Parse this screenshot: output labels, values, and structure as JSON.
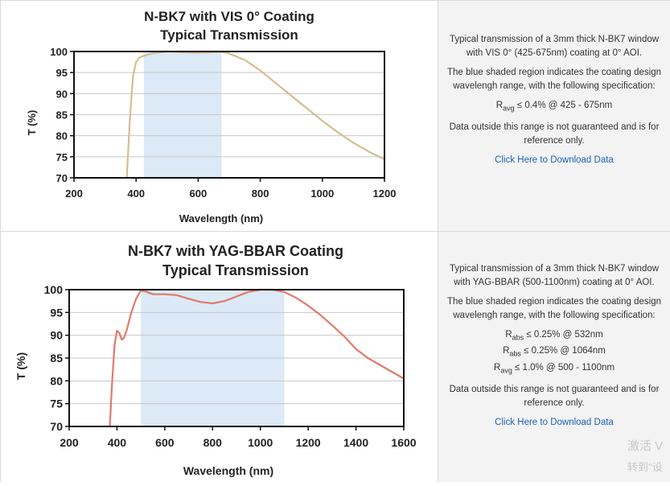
{
  "charts": [
    {
      "chart_data": {
        "type": "line",
        "title_line1": "N-BK7 with VIS 0° Coating",
        "title_line2": "Typical Transmission",
        "xlabel": "Wavelength (nm)",
        "ylabel": "T (%)",
        "xlim": [
          200,
          1200
        ],
        "ylim": [
          70,
          100
        ],
        "xticks": [
          "200",
          "400",
          "600",
          "800",
          "1000",
          "1200"
        ],
        "yticks": [
          "70",
          "75",
          "80",
          "85",
          "90",
          "95",
          "100"
        ],
        "shaded_region": [
          425,
          675
        ],
        "grid": true,
        "line_color": "#d6bd8f",
        "shade_color": "#dce9f6",
        "series": [
          {
            "x": [
              370,
              380,
              390,
              400,
              410,
              425,
              450,
              500,
              550,
              600,
              650,
              675,
              700,
              750,
              800,
              850,
              900,
              950,
              1000,
              1050,
              1100,
              1150,
              1200
            ],
            "values": [
              70,
              84,
              94,
              97.5,
              98.5,
              99,
              99.5,
              100,
              99.8,
              99.7,
              99.8,
              99.9,
              99.5,
              98,
              95.5,
              92.5,
              89.5,
              86.5,
              83.5,
              80.8,
              78.3,
              76.2,
              74.4
            ]
          }
        ]
      },
      "description": {
        "para1": "Typical transmission of a 3mm thick N-BK7 window with VIS 0° (425-675nm) coating at 0° AOI.",
        "para2": "The blue shaded region indicates the coating design wavelengh range, with the following specification:",
        "specs": [
          {
            "main": "R",
            "sub": "avg",
            "rest": " ≤ 0.4% @ 425 - 675nm"
          }
        ],
        "para3": "Data outside this range is not guaranteed and is for reference only.",
        "link": "Click Here to Download Data"
      }
    },
    {
      "chart_data": {
        "type": "line",
        "title_line1": "N-BK7 with YAG-BBAR Coating",
        "title_line2": "Typical Transmission",
        "xlabel": "Wavelength (nm)",
        "ylabel": "T (%)",
        "xlim": [
          200,
          1600
        ],
        "ylim": [
          70,
          100
        ],
        "xticks": [
          "200",
          "400",
          "600",
          "800",
          "1000",
          "1200",
          "1400",
          "1600"
        ],
        "yticks": [
          "70",
          "75",
          "80",
          "85",
          "90",
          "95",
          "100"
        ],
        "shaded_region": [
          500,
          1100
        ],
        "grid": true,
        "line_color": "#e07a6b",
        "shade_color": "#dce9f6",
        "series": [
          {
            "x": [
              370,
              380,
              390,
              400,
              410,
              420,
              430,
              440,
              460,
              480,
              500,
              520,
              550,
              600,
              650,
              700,
              750,
              800,
              850,
              900,
              950,
              1000,
              1050,
              1100,
              1150,
              1200,
              1250,
              1300,
              1350,
              1400,
              1450,
              1500,
              1550,
              1600
            ],
            "values": [
              70,
              80,
              88,
              91,
              90.5,
              89,
              89.5,
              91,
              95,
              98,
              99.8,
              99.6,
              99,
              99,
              98.8,
              98,
              97.3,
              97,
              97.5,
              98.5,
              99.5,
              100,
              100,
              99.5,
              98.2,
              96.5,
              94.5,
              92.2,
              89.8,
              87,
              85,
              83.5,
              82,
              80.5
            ]
          }
        ]
      },
      "description": {
        "para1": "Typical transmission of a 3mm thick N-BK7 window with YAG-BBAR (500-1100nm) coating at 0° AOI.",
        "para2": "The blue shaded region indicates the coating design wavelengh range, with the following specification:",
        "specs": [
          {
            "main": "R",
            "sub": "abs",
            "rest": " ≤ 0.25% @ 532nm"
          },
          {
            "main": "R",
            "sub": "abs",
            "rest": " ≤ 0.25% @ 1064nm"
          },
          {
            "main": "R",
            "sub": "avg",
            "rest": " ≤ 1.0% @ 500 - 1100nm"
          }
        ],
        "para3": "Data outside this range is not guaranteed and is for reference only.",
        "link": "Click Here to Download Data"
      }
    }
  ],
  "watermark": {
    "line1": "激活 V",
    "line2": "转到\"设"
  }
}
